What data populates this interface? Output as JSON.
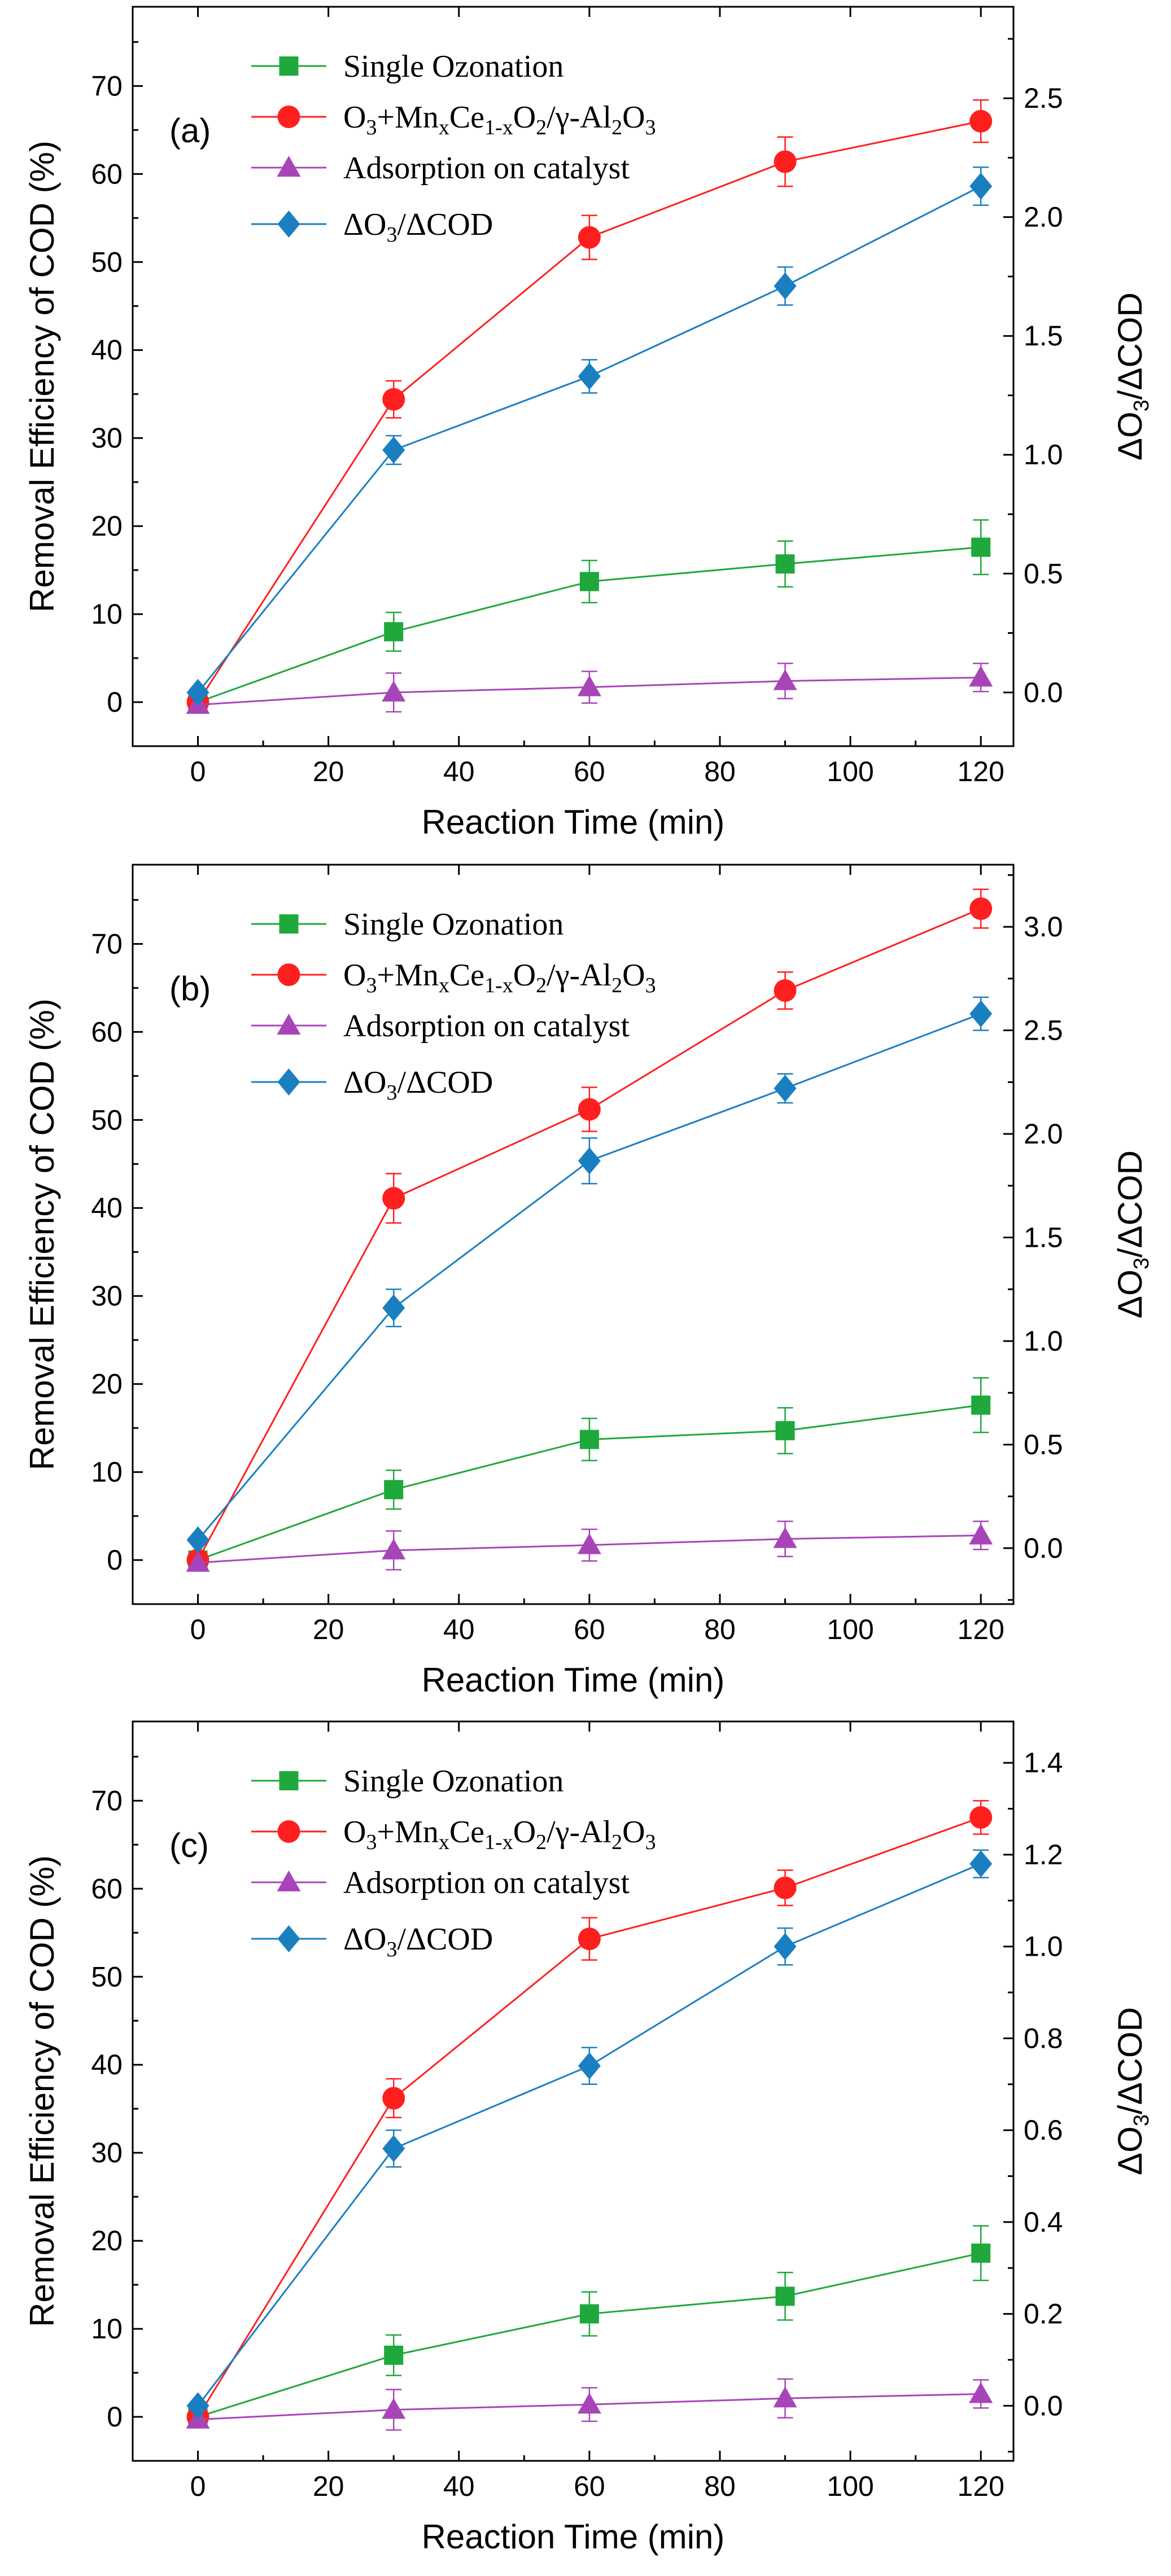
{
  "chart_data": [
    {
      "type": "line",
      "panel_label": "(a)",
      "xlabel": "Reaction Time (min)",
      "ylabel": "Removal Efficiency of COD (%)",
      "y2label": {
        "main": "ΔO",
        "sub": "3",
        "rest": "/ΔCOD"
      },
      "xlim": [
        -10,
        125
      ],
      "ylim": [
        -5,
        79
      ],
      "y2lim": [
        -0.226,
        2.885
      ],
      "xticks": [
        "0",
        "20",
        "40",
        "60",
        "80",
        "100",
        "120"
      ],
      "yticks": [
        "0",
        "10",
        "20",
        "30",
        "40",
        "50",
        "60",
        "70"
      ],
      "y2ticks": [
        "0.0",
        "0.5",
        "1.0",
        "1.5",
        "2.0",
        "2.5"
      ],
      "x": [
        0,
        30,
        60,
        90,
        120
      ],
      "legend_labels": {
        "single": "Single Ozonation",
        "catalytic": {
          "t1": "O",
          "s1": "3",
          "t2": "+Mn",
          "s2": "x",
          "t3": "Ce",
          "s3": "1-x",
          "t4": "O",
          "s4": "2",
          "t5": "/γ-Al",
          "s5": "2",
          "t6": "O",
          "s6": "3"
        },
        "adsorption": "Adsorption on catalyst",
        "ratio": {
          "t1": "ΔO",
          "s1": "3",
          "t2": "/ΔCOD"
        }
      },
      "series": [
        {
          "key": "single",
          "name": "Single Ozonation",
          "color": "#1fa83c",
          "marker": "square",
          "axis": "left",
          "values": [
            0,
            8,
            13.7,
            15.7,
            17.6
          ],
          "err": [
            0,
            2.2,
            2.4,
            2.6,
            3.1
          ]
        },
        {
          "key": "catalytic",
          "name": "O3+MnxCe1-xO2/γ-Al2O3",
          "color": "#ff1f1f",
          "marker": "circle",
          "axis": "left",
          "values": [
            0,
            34.4,
            52.8,
            61.4,
            66
          ],
          "err": [
            0,
            2.1,
            2.5,
            2.8,
            2.4
          ]
        },
        {
          "key": "adsorption",
          "name": "Adsorption on catalyst",
          "color": "#a745b8",
          "marker": "triangle",
          "axis": "left",
          "values": [
            -0.3,
            1.1,
            1.7,
            2.4,
            2.8
          ],
          "err": [
            0,
            2.2,
            1.8,
            2.0,
            1.6
          ]
        },
        {
          "key": "ratio",
          "name": "ΔO3/ΔCOD",
          "color": "#1a7fc1",
          "marker": "diamond",
          "axis": "right",
          "values": [
            0.0,
            1.02,
            1.33,
            1.71,
            2.13
          ],
          "err": [
            0,
            0.06,
            0.07,
            0.08,
            0.08
          ]
        }
      ]
    },
    {
      "type": "line",
      "panel_label": "(b)",
      "xlabel": "Reaction Time (min)",
      "ylabel": "Removal Efficiency of COD (%)",
      "y2label": {
        "main": "ΔO",
        "sub": "3",
        "rest": "/ΔCOD"
      },
      "xlim": [
        -10,
        125
      ],
      "ylim": [
        -5,
        79
      ],
      "y2lim": [
        -0.27,
        3.3
      ],
      "xticks": [
        "0",
        "20",
        "40",
        "60",
        "80",
        "100",
        "120"
      ],
      "yticks": [
        "0",
        "10",
        "20",
        "30",
        "40",
        "50",
        "60",
        "70"
      ],
      "y2ticks": [
        "0.0",
        "0.5",
        "1.0",
        "1.5",
        "2.0",
        "2.5",
        "3.0"
      ],
      "x": [
        0,
        30,
        60,
        90,
        120
      ],
      "legend_labels": {
        "single": "Single Ozonation",
        "catalytic": {
          "t1": "O",
          "s1": "3",
          "t2": "+Mn",
          "s2": "x",
          "t3": "Ce",
          "s3": "1-x",
          "t4": "O",
          "s4": "2",
          "t5": "/γ-Al",
          "s5": "2",
          "t6": "O",
          "s6": "3"
        },
        "adsorption": "Adsorption on catalyst",
        "ratio": {
          "t1": "ΔO",
          "s1": "3",
          "t2": "/ΔCOD"
        }
      },
      "series": [
        {
          "key": "single",
          "name": "Single Ozonation",
          "color": "#1fa83c",
          "marker": "square",
          "axis": "left",
          "values": [
            0,
            8,
            13.7,
            14.7,
            17.6
          ],
          "err": [
            0,
            2.2,
            2.4,
            2.6,
            3.1
          ]
        },
        {
          "key": "catalytic",
          "name": "O3+MnxCe1-xO2/γ-Al2O3",
          "color": "#ff1f1f",
          "marker": "circle",
          "axis": "left",
          "values": [
            0,
            41.1,
            51.2,
            64.7,
            74
          ],
          "err": [
            0,
            2.8,
            2.5,
            2.1,
            2.2
          ]
        },
        {
          "key": "adsorption",
          "name": "Adsorption on catalyst",
          "color": "#a745b8",
          "marker": "triangle",
          "axis": "left",
          "values": [
            -0.3,
            1.1,
            1.7,
            2.4,
            2.8
          ],
          "err": [
            0,
            2.2,
            1.8,
            2.0,
            1.6
          ]
        },
        {
          "key": "ratio",
          "name": "ΔO3/ΔCOD",
          "color": "#1a7fc1",
          "marker": "diamond",
          "axis": "right",
          "values": [
            0.04,
            1.16,
            1.87,
            2.22,
            2.58
          ],
          "err": [
            0,
            0.09,
            0.11,
            0.07,
            0.08
          ]
        }
      ]
    },
    {
      "type": "line",
      "panel_label": "(c)",
      "xlabel": "Reaction Time (min)",
      "ylabel": "Removal Efficiency of COD (%)",
      "y2label": {
        "main": "ΔO",
        "sub": "3",
        "rest": "/ΔCOD"
      },
      "xlim": [
        -10,
        125
      ],
      "ylim": [
        -5,
        79
      ],
      "y2lim": [
        -0.12,
        1.49
      ],
      "xticks": [
        "0",
        "20",
        "40",
        "60",
        "80",
        "100",
        "120"
      ],
      "yticks": [
        "0",
        "10",
        "20",
        "30",
        "40",
        "50",
        "60",
        "70"
      ],
      "y2ticks": [
        "0.0",
        "0.2",
        "0.4",
        "0.6",
        "0.8",
        "1.0",
        "1.2",
        "1.4"
      ],
      "x": [
        0,
        30,
        60,
        90,
        120
      ],
      "legend_labels": {
        "single": "Single Ozonation",
        "catalytic": {
          "t1": "O",
          "s1": "3",
          "t2": "+Mn",
          "s2": "x",
          "t3": "Ce",
          "s3": "1-x",
          "t4": "O",
          "s4": "2",
          "t5": "/γ-Al",
          "s5": "2",
          "t6": "O",
          "s6": "3"
        },
        "adsorption": "Adsorption on catalyst",
        "ratio": {
          "t1": "ΔO",
          "s1": "3",
          "t2": "/ΔCOD"
        }
      },
      "series": [
        {
          "key": "single",
          "name": "Single Ozonation",
          "color": "#1fa83c",
          "marker": "square",
          "axis": "left",
          "values": [
            0,
            7,
            11.7,
            13.7,
            18.6
          ],
          "err": [
            0,
            2.3,
            2.5,
            2.7,
            3.1
          ]
        },
        {
          "key": "catalytic",
          "name": "O3+MnxCe1-xO2/γ-Al2O3",
          "color": "#ff1f1f",
          "marker": "circle",
          "axis": "left",
          "values": [
            0,
            36.2,
            54.3,
            60.1,
            68.1
          ],
          "err": [
            0,
            2.2,
            2.4,
            2.0,
            1.9
          ]
        },
        {
          "key": "adsorption",
          "name": "Adsorption on catalyst",
          "color": "#a745b8",
          "marker": "triangle",
          "axis": "left",
          "values": [
            -0.3,
            0.8,
            1.4,
            2.1,
            2.6
          ],
          "err": [
            0,
            2.3,
            1.9,
            2.2,
            1.6
          ]
        },
        {
          "key": "ratio",
          "name": "ΔO3/ΔCOD",
          "color": "#1a7fc1",
          "marker": "diamond",
          "axis": "right",
          "values": [
            0.0,
            0.56,
            0.74,
            1.0,
            1.18
          ],
          "err": [
            0,
            0.04,
            0.04,
            0.04,
            0.03
          ]
        }
      ]
    }
  ]
}
